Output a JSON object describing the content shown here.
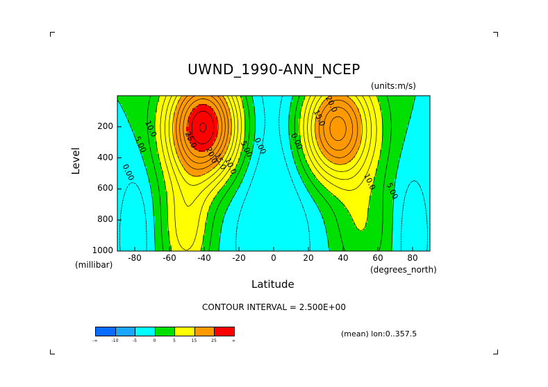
{
  "figure": {
    "title": "UWND_1990-ANN_NCEP",
    "units": "(units:m/s)",
    "contour_interval": "CONTOUR INTERVAL = 2.500E+00",
    "mean_note": "(mean) lon:0..357.5"
  },
  "chart_data": {
    "type": "heatmap",
    "title": "UWND_1990-ANN_NCEP",
    "variable_units": "(units:m/s)",
    "xlabel": "Latitude",
    "x_units": "(degrees_north)",
    "ylabel": "Level",
    "y_units": "(millibar)",
    "xlim": [
      -90,
      90
    ],
    "ylim": [
      1000,
      0
    ],
    "x_ticks": [
      -80,
      -60,
      -40,
      -20,
      0,
      20,
      40,
      60,
      80
    ],
    "y_ticks": [
      200,
      400,
      600,
      800,
      1000
    ],
    "contour_labels": [
      {
        "text": "10.0",
        "lat": -72,
        "lev": 220
      },
      {
        "text": "5.00",
        "lat": -78,
        "lev": 320
      },
      {
        "text": "0.00",
        "lat": -85,
        "lev": 500
      },
      {
        "text": "25.0",
        "lat": -49,
        "lev": 290
      },
      {
        "text": "20.0",
        "lat": -37,
        "lev": 390
      },
      {
        "text": "15.0",
        "lat": -32,
        "lev": 430
      },
      {
        "text": "10.0",
        "lat": -26,
        "lev": 460
      },
      {
        "text": "5.00",
        "lat": -17,
        "lev": 350
      },
      {
        "text": "0.00",
        "lat": -9,
        "lev": 330
      },
      {
        "text": "0.00",
        "lat": 12,
        "lev": 300
      },
      {
        "text": "15.0",
        "lat": 25,
        "lev": 150
      },
      {
        "text": "20.0",
        "lat": 32,
        "lev": 60
      },
      {
        "text": "10.0",
        "lat": 54,
        "lev": 560
      },
      {
        "text": "5.00",
        "lat": 67,
        "lev": 620
      }
    ],
    "features": {
      "sh_jet": {
        "lat": -40,
        "lev": 200,
        "max": 30
      },
      "nh_jet": {
        "lat": 36,
        "lev": 200,
        "max": 25
      },
      "tropical_easterlies": {
        "lat": 0,
        "min": -5
      }
    },
    "colorbar": {
      "levels": [
        "-∞",
        "-10",
        "-5",
        "0",
        "5",
        "15",
        "25",
        "∞"
      ],
      "colors": [
        "#0a6cff",
        "#1aa6ff",
        "#00ffff",
        "#00e000",
        "#ffff00",
        "#ff9900",
        "#ff0000"
      ]
    }
  }
}
